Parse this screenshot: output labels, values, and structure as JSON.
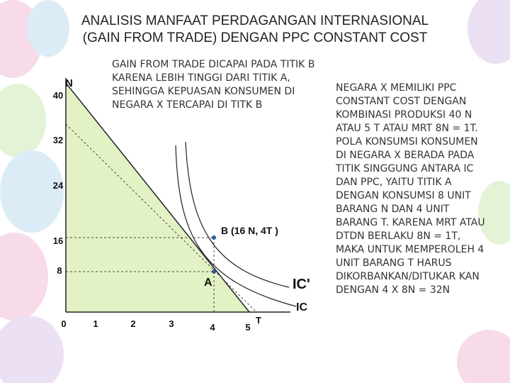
{
  "title": {
    "line1": "ANALISIS MANFAAT PERDAGANGAN INTERNASIONAL",
    "line2": "(GAIN FROM TRADE) DENGAN PPC CONSTANT COST"
  },
  "note": "GAIN FROM TRADE DICAPAI PADA TITIK B KARENA LEBIH TINGGI DARI TITIK A, SEHINGGA KEPUASAN KONSUMEN DI NEGARA X TERCAPAI DI TITK B",
  "side_text": "NEGARA X MEMILIKI PPC CONSTANT COST DENGAN KOMBINASI PRODUKSI 40 N ATAU 5 T ATAU MRT 8N = 1T. POLA KONSUMSI KONSUMEN DI NEGARA X BERADA PADA TITIK SINGGUNG ANTARA IC DAN PPC, YAITU TITIK A DENGAN KONSUMSI 8 UNIT BARANG N DAN 4 UNIT BARANG T. KARENA MRT ATAU DTDN BERLAKU 8N = 1T, MAKA UNTUK MEMPEROLEH 4 UNIT BARANG T HARUS DIKORBANKAN/DITUKAR KAN DENGAN 4 X 8N = 32N",
  "colors": {
    "fill": "#e3f2c4",
    "balloon_pink": "#f7dbe9",
    "balloon_blue": "#dcecf7",
    "balloon_green": "#e4f3d6",
    "balloon_purple": "#ece0f4",
    "point": "#2a5a9a"
  },
  "diagram": {
    "y_axis_label": "N",
    "x_axis_label": "T",
    "y_ticks": [
      "40",
      "32",
      "24",
      "16",
      "8"
    ],
    "x_ticks": [
      "0",
      "1",
      "2",
      "3",
      "4",
      "5"
    ],
    "point_a": "A",
    "point_b": "B (16 N, 4T )",
    "curve_ic": "IC",
    "curve_ic2": "IC'"
  }
}
